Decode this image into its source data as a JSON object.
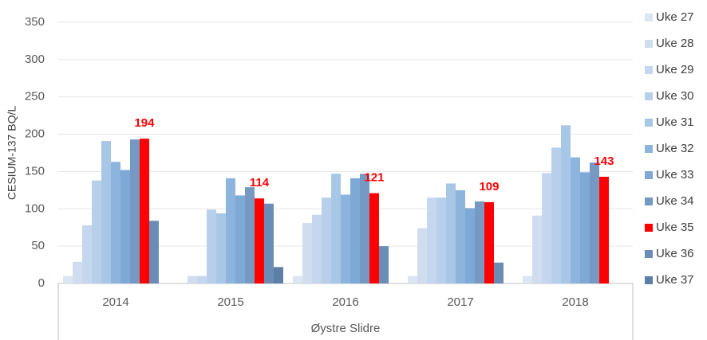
{
  "chart_data": {
    "type": "bar",
    "y_label": "CESIUM-137 BQ/L",
    "x_label": "Øystre Slidre",
    "categories": [
      "2014",
      "2015",
      "2016",
      "2017",
      "2018"
    ],
    "series": [
      {
        "name": "Uke 27",
        "color": "#dce6f2",
        "values": [
          10,
          null,
          10,
          10,
          10
        ]
      },
      {
        "name": "Uke 28",
        "color": "#d0ddef",
        "values": [
          29,
          10,
          81,
          74,
          91
        ]
      },
      {
        "name": "Uke 29",
        "color": "#c5d7ee",
        "values": [
          78,
          10,
          92,
          115,
          148
        ]
      },
      {
        "name": "Uke 30",
        "color": "#b7cfea",
        "values": [
          138,
          99,
          115,
          115,
          182
        ]
      },
      {
        "name": "Uke 31",
        "color": "#a8c6e6",
        "values": [
          191,
          94,
          147,
          134,
          212
        ]
      },
      {
        "name": "Uke 32",
        "color": "#8db4dd",
        "values": [
          163,
          141,
          119,
          125,
          169
        ]
      },
      {
        "name": "Uke 33",
        "color": "#7ea8d6",
        "values": [
          152,
          118,
          141,
          101,
          149
        ]
      },
      {
        "name": "Uke 34",
        "color": "#7699c4",
        "values": [
          193,
          129,
          147,
          110,
          162
        ]
      },
      {
        "name": "Uke 35",
        "color": "#ff0000",
        "values": [
          194,
          114,
          121,
          109,
          143
        ],
        "show_labels": true
      },
      {
        "name": "Uke 36",
        "color": "#6b8db5",
        "values": [
          84,
          107,
          50,
          28,
          null
        ]
      },
      {
        "name": "Uke 37",
        "color": "#5c7fa6",
        "values": [
          null,
          22,
          null,
          null,
          null
        ]
      }
    ],
    "ylim": [
      0,
      350
    ],
    "yticks": [
      0,
      50,
      100,
      150,
      200,
      250,
      300,
      350
    ],
    "grid": true
  }
}
